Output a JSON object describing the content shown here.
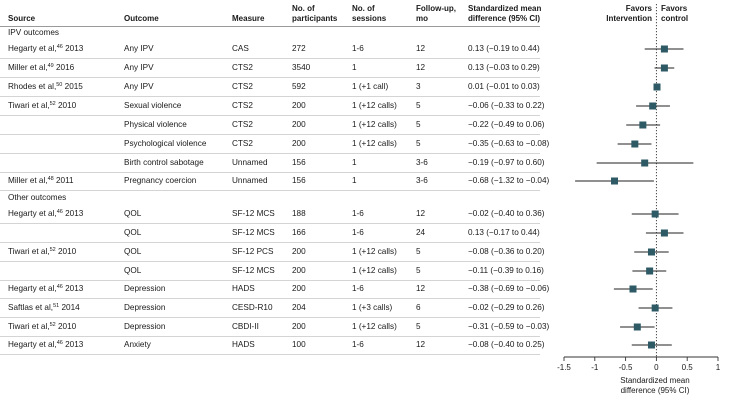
{
  "headers": {
    "source": "Source",
    "outcome": "Outcome",
    "measure": "Measure",
    "participants": [
      "No. of",
      "participants"
    ],
    "sessions": [
      "No. of",
      "sessions"
    ],
    "followup": [
      "Follow-up,",
      "mo"
    ],
    "smd": [
      "Standardized mean",
      "difference (95% CI)"
    ]
  },
  "favors": {
    "intervention": [
      "Favors",
      "Intervention"
    ],
    "control": [
      "Favors",
      "control"
    ]
  },
  "sections": {
    "ipv": "IPV outcomes",
    "other": "Other outcomes"
  },
  "rows": [
    {
      "source": "Hegarty et al,",
      "ref": "46",
      "year": " 2013",
      "outcome": "Any IPV",
      "measure": "CAS",
      "n": "272",
      "sessions": "1-6",
      "followup": "12",
      "ci_text": "0.13 (−0.19 to 0.44)"
    },
    {
      "source": "Miller et al,",
      "ref": "49",
      "year": " 2016",
      "outcome": "Any IPV",
      "measure": "CTS2",
      "n": "3540",
      "sessions": "1",
      "followup": "12",
      "ci_text": "0.13 (−0.03 to 0.29)"
    },
    {
      "source": "Rhodes et al,",
      "ref": "50",
      "year": " 2015",
      "outcome": "Any IPV",
      "measure": "CTS2",
      "n": "592",
      "sessions": "1 (+1 call)",
      "followup": "3",
      "ci_text": "0.01 (−0.01 to 0.03)"
    },
    {
      "source": "Tiwari et al,",
      "ref": "52",
      "year": " 2010",
      "outcome": "Sexual violence",
      "measure": "CTS2",
      "n": "200",
      "sessions": "1 (+12 calls)",
      "followup": "5",
      "ci_text": "−0.06 (−0.33 to 0.22)"
    },
    {
      "source": "",
      "ref": "",
      "year": "",
      "outcome": "Physical violence",
      "measure": "CTS2",
      "n": "200",
      "sessions": "1 (+12 calls)",
      "followup": "5",
      "ci_text": "−0.22 (−0.49 to 0.06)"
    },
    {
      "source": "",
      "ref": "",
      "year": "",
      "outcome": "Psychological violence",
      "measure": "CTS2",
      "n": "200",
      "sessions": "1 (+12 calls)",
      "followup": "5",
      "ci_text": "−0.35 (−0.63 to −0.08)"
    },
    {
      "source": "",
      "ref": "",
      "year": "",
      "outcome": "Birth control sabotage",
      "measure": "Unnamed",
      "n": "156",
      "sessions": "1",
      "followup": "3-6",
      "ci_text": "−0.19 (−0.97 to 0.60)"
    },
    {
      "source": "Miller et al,",
      "ref": "48",
      "year": " 2011",
      "outcome": "Pregnancy coercion",
      "measure": "Unnamed",
      "n": "156",
      "sessions": "1",
      "followup": "3-6",
      "ci_text": "−0.68 (−1.32 to −0.04)"
    },
    {
      "source": "Hegarty et al,",
      "ref": "46",
      "year": " 2013",
      "outcome": "QOL",
      "measure": "SF-12 MCS",
      "n": "188",
      "sessions": "1-6",
      "followup": "12",
      "ci_text": "−0.02 (−0.40 to 0.36)"
    },
    {
      "source": "",
      "ref": "",
      "year": "",
      "outcome": "QOL",
      "measure": "SF-12 MCS",
      "n": "166",
      "sessions": "1-6",
      "followup": "24",
      "ci_text": "0.13 (−0.17 to 0.44)"
    },
    {
      "source": "Tiwari et al,",
      "ref": "52",
      "year": " 2010",
      "outcome": "QOL",
      "measure": "SF-12 PCS",
      "n": "200",
      "sessions": "1 (+12 calls)",
      "followup": "5",
      "ci_text": "−0.08 (−0.36 to 0.20)"
    },
    {
      "source": "",
      "ref": "",
      "year": "",
      "outcome": "QOL",
      "measure": "SF-12 MCS",
      "n": "200",
      "sessions": "1 (+12 calls)",
      "followup": "5",
      "ci_text": "−0.11 (−0.39 to 0.16)"
    },
    {
      "source": "Hegarty et al,",
      "ref": "46",
      "year": " 2013",
      "outcome": "Depression",
      "measure": "HADS",
      "n": "200",
      "sessions": "1-6",
      "followup": "12",
      "ci_text": "−0.38 (−0.69 to −0.06)"
    },
    {
      "source": "Saftlas et al,",
      "ref": "51",
      "year": " 2014",
      "outcome": "Depression",
      "measure": "CESD-R10",
      "n": "204",
      "sessions": "1 (+3 calls)",
      "followup": "6",
      "ci_text": "−0.02 (−0.29 to 0.26)"
    },
    {
      "source": "Tiwari et al,",
      "ref": "52",
      "year": " 2010",
      "outcome": "Depression",
      "measure": "CBDI-II",
      "n": "200",
      "sessions": "1 (+12 calls)",
      "followup": "5",
      "ci_text": "−0.31 (−0.59 to −0.03)"
    },
    {
      "source": "Hegarty et al,",
      "ref": "46",
      "year": " 2013",
      "outcome": "Anxiety",
      "measure": "HADS",
      "n": "100",
      "sessions": "1-6",
      "followup": "12",
      "ci_text": "−0.08 (−0.40 to 0.25)"
    }
  ],
  "axis_title": [
    "Standardized mean",
    "difference (95% CI)"
  ],
  "colors": {
    "marker": "#2e5a66",
    "text": "#1a1a1a",
    "rule": "#d4d4d4"
  },
  "chart_data": {
    "type": "forest",
    "xlabel": "Standardized mean difference (95% CI)",
    "xlim": [
      -1.5,
      1
    ],
    "ticks": [
      -1.5,
      -1,
      -0.5,
      0,
      0.5,
      1
    ],
    "tick_labels": [
      "-1.5",
      "-1",
      "-0.5",
      "0",
      "0.5",
      "1"
    ],
    "reference_line": 0,
    "points": [
      {
        "est": 0.13,
        "lo": -0.19,
        "hi": 0.44
      },
      {
        "est": 0.13,
        "lo": -0.03,
        "hi": 0.29
      },
      {
        "est": 0.01,
        "lo": -0.01,
        "hi": 0.03
      },
      {
        "est": -0.06,
        "lo": -0.33,
        "hi": 0.22
      },
      {
        "est": -0.22,
        "lo": -0.49,
        "hi": 0.06
      },
      {
        "est": -0.35,
        "lo": -0.63,
        "hi": -0.08
      },
      {
        "est": -0.19,
        "lo": -0.97,
        "hi": 0.6
      },
      {
        "est": -0.68,
        "lo": -1.32,
        "hi": -0.04
      },
      {
        "est": -0.02,
        "lo": -0.4,
        "hi": 0.36
      },
      {
        "est": 0.13,
        "lo": -0.17,
        "hi": 0.44
      },
      {
        "est": -0.08,
        "lo": -0.36,
        "hi": 0.2
      },
      {
        "est": -0.11,
        "lo": -0.39,
        "hi": 0.16
      },
      {
        "est": -0.38,
        "lo": -0.69,
        "hi": -0.06
      },
      {
        "est": -0.02,
        "lo": -0.29,
        "hi": 0.26
      },
      {
        "est": -0.31,
        "lo": -0.59,
        "hi": -0.03
      },
      {
        "est": -0.08,
        "lo": -0.4,
        "hi": 0.25
      }
    ]
  }
}
